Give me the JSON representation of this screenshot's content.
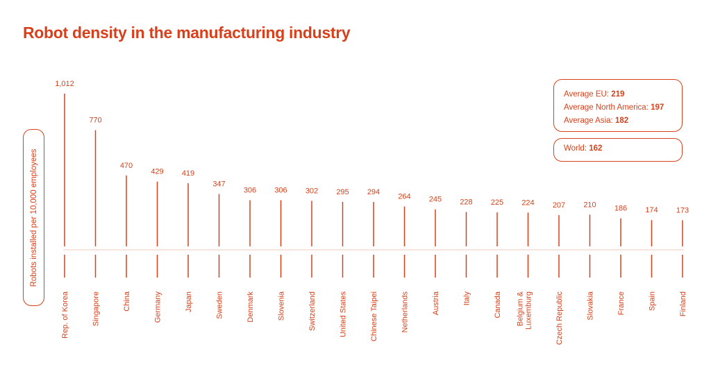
{
  "title": "Robot density in the manufacturing industry",
  "accent_color": "#d7401a",
  "baseline_color": "#f2c9bc",
  "summary": {
    "avg_eu_label": "Average EU:",
    "avg_eu_value": "219",
    "avg_na_label": "Average North America:",
    "avg_na_value": "197",
    "avg_asia_label": "Average Asia:",
    "avg_asia_value": "182",
    "world_label": "World:",
    "world_value": "162"
  },
  "chart_data": {
    "type": "bar",
    "title": "Robot density in the manufacturing industry",
    "ylabel": "Robots installed per 10,000 employees",
    "xlabel": "",
    "ylim": [
      0,
      1012
    ],
    "grid": false,
    "categories": [
      "Rep. of Korea",
      "Singapore",
      "China",
      "Germany",
      "Japan",
      "Sweden",
      "Denmark",
      "Slovenia",
      "Switzerland",
      "United States",
      "Chinese Taipei",
      "Netherlands",
      "Austria",
      "Italy",
      "Canada",
      "Belgium & Luxemburg",
      "Czech Republic",
      "Slovakia",
      "France",
      "Spain",
      "Finland"
    ],
    "category_lines": [
      [
        "Rep. of Korea"
      ],
      [
        "Singapore"
      ],
      [
        "China"
      ],
      [
        "Germany"
      ],
      [
        "Japan"
      ],
      [
        "Sweden"
      ],
      [
        "Denmark"
      ],
      [
        "Slovenia"
      ],
      [
        "Switzerland"
      ],
      [
        "United States"
      ],
      [
        "Chinese Taipei"
      ],
      [
        "Netherlands"
      ],
      [
        "Austria"
      ],
      [
        "Italy"
      ],
      [
        "Canada"
      ],
      [
        "Belgium &",
        "Luxemburg"
      ],
      [
        "Czech Republic"
      ],
      [
        "Slovakia"
      ],
      [
        "France"
      ],
      [
        "Spain"
      ],
      [
        "Finland"
      ]
    ],
    "values": [
      1012,
      770,
      470,
      429,
      419,
      347,
      306,
      306,
      302,
      295,
      294,
      264,
      245,
      228,
      225,
      224,
      207,
      210,
      186,
      174,
      173
    ],
    "value_labels": [
      "1,012",
      "770",
      "470",
      "429",
      "419",
      "347",
      "306",
      "306",
      "302",
      "295",
      "294",
      "264",
      "245",
      "228",
      "225",
      "224",
      "207",
      "210",
      "186",
      "174",
      "173"
    ]
  }
}
